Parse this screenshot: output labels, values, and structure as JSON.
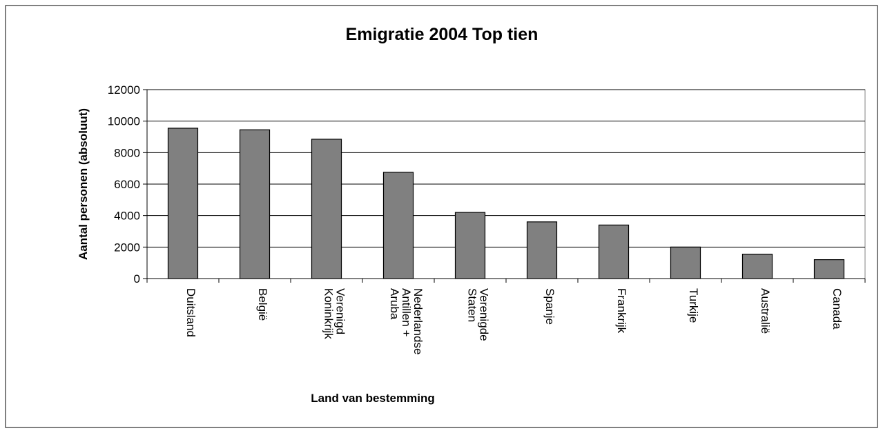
{
  "chart_data": {
    "type": "bar",
    "title": "Emigratie 2004 Top tien",
    "y_label": "Aantal personen (absoluut)",
    "x_label": "Land van bestemming",
    "categories": [
      "Duitsland",
      "België",
      "Verenigd\nKoninkrijk",
      "Nederlandse\nAntillen +\nAruba",
      "Verenigde\nStaten",
      "Spanje",
      "Frankrijk",
      "Turkije",
      "Australië",
      "Canada"
    ],
    "values": [
      9550,
      9450,
      8850,
      6750,
      4200,
      3600,
      3400,
      2000,
      1550,
      1200
    ],
    "color": "#808080",
    "ylim": [
      0,
      12000
    ],
    "yticks": [
      0,
      2000,
      4000,
      6000,
      8000,
      10000,
      12000
    ],
    "grid": true
  }
}
